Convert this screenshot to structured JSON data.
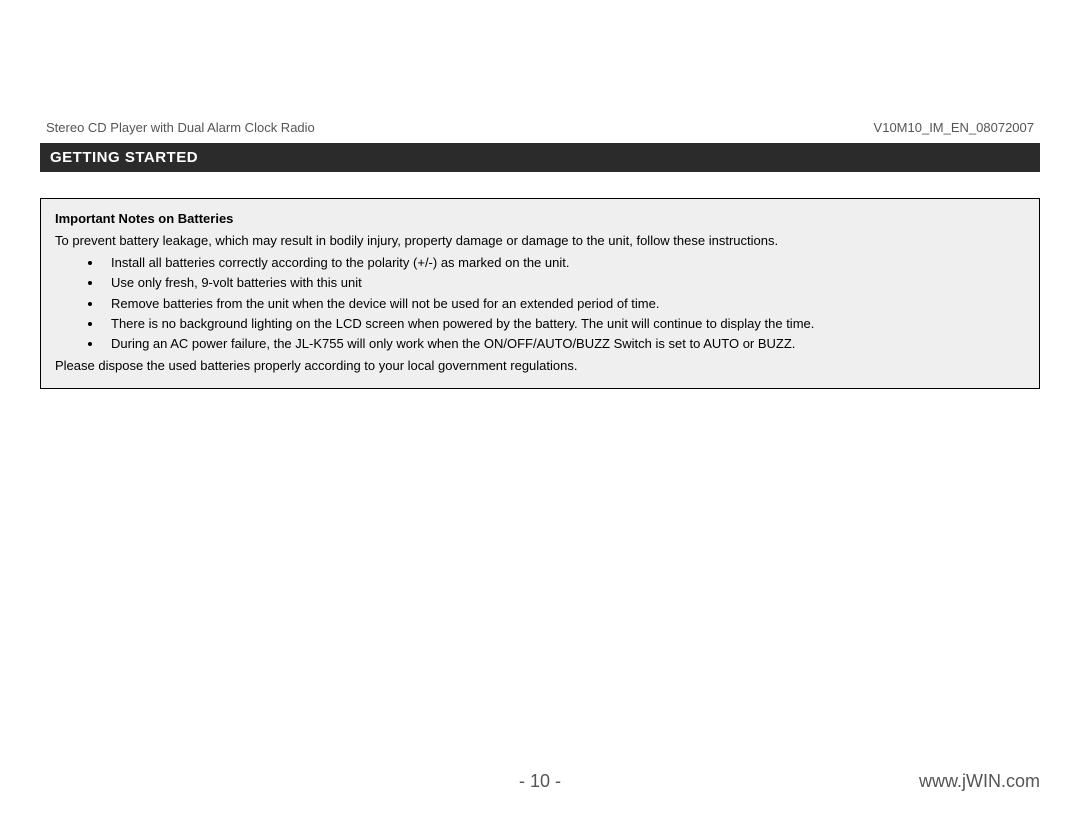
{
  "header": {
    "product": "Stereo CD Player with Dual Alarm Clock Radio",
    "doc_id": "V10M10_IM_EN_08072007"
  },
  "section": {
    "title": "GETTING STARTED"
  },
  "notes": {
    "title": "Important Notes on Batteries",
    "intro": "To prevent battery leakage, which may result in bodily injury, property damage or damage to the unit, follow these instructions.",
    "bullets": [
      "Install all batteries correctly according to the polarity (+/-) as marked on the unit.",
      "Use only fresh, 9-volt batteries with this unit",
      "Remove batteries from the unit when the device will not be used for an extended period of time.",
      "There is no background lighting on the LCD screen when powered by the battery. The unit will continue to display the time.",
      "During an AC power failure, the JL-K755 will only work when the ON/OFF/AUTO/BUZZ Switch is set to AUTO or BUZZ."
    ],
    "outro": "Please dispose the used batteries properly according to your local government regulations."
  },
  "footer": {
    "page": "- 10 -",
    "site": "www.jWIN.com"
  },
  "colors": {
    "bar_bg": "#2b2b2b",
    "bar_text": "#ffffff",
    "box_bg": "#efefef",
    "box_border": "#000000",
    "header_text": "#555555",
    "footer_text": "#555555",
    "page_bg": "#ffffff"
  }
}
